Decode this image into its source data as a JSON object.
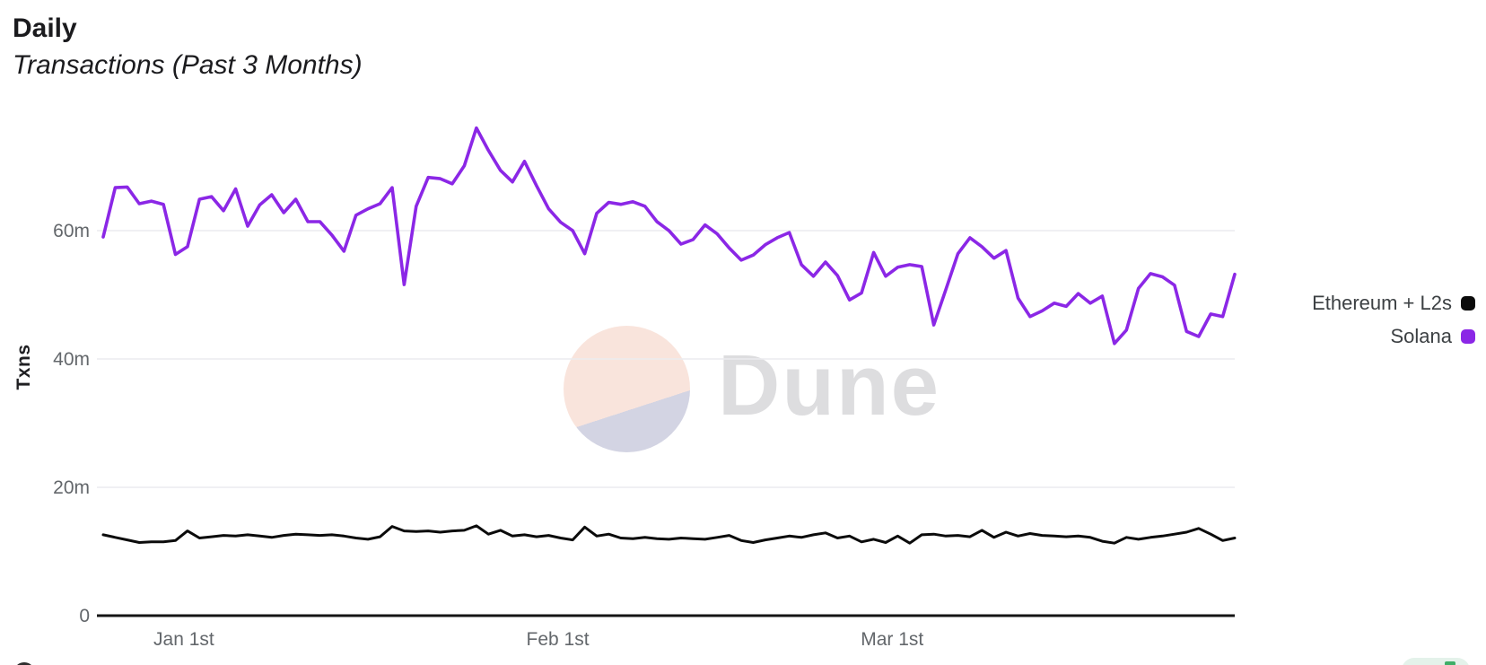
{
  "header": {
    "title": "Daily",
    "subtitle": "Transactions (Past 3 Months)"
  },
  "watermark": {
    "text": "Dune",
    "logo_icon": "dune-gradient-circle-icon"
  },
  "icons": {
    "corner_badge": "sparkle-icon"
  },
  "colors": {
    "ethereum_l2s": "#0b0b0b",
    "solana": "#8b27e6",
    "grid": "#ececef",
    "axis": "#141414",
    "tick_text": "#63676b",
    "watermark_pink": "#f9e4dc",
    "watermark_lavender": "#d3d4e3"
  },
  "legend": {
    "position": "right",
    "items": [
      {
        "label": "Ethereum + L2s",
        "color": "#0b0b0b"
      },
      {
        "label": "Solana",
        "color": "#8b27e6"
      }
    ]
  },
  "chart_data": {
    "type": "line",
    "title": "Daily Transactions (Past 3 Months)",
    "xlabel": "",
    "ylabel": "Txns",
    "unit": "millions of transactions per day",
    "ylim": [
      0,
      80
    ],
    "grid": "horizontal",
    "legend_position": "right",
    "y_ticks": [
      {
        "label": "0",
        "value": 0
      },
      {
        "label": "20m",
        "value": 20
      },
      {
        "label": "40m",
        "value": 40
      },
      {
        "label": "60m",
        "value": 60
      }
    ],
    "x_ticks": [
      {
        "label": "Jan 1st",
        "day_index": 6.7
      },
      {
        "label": "Feb 1st",
        "day_index": 37.76
      },
      {
        "label": "Mar 1st",
        "day_index": 65.54
      }
    ],
    "series": [
      {
        "name": "Ethereum + L2s",
        "color": "#0b0b0b",
        "stroke_width": 3,
        "values": [
          12.6,
          12.2,
          11.8,
          11.4,
          11.5,
          11.5,
          11.7,
          13.2,
          12.1,
          12.3,
          12.5,
          12.4,
          12.6,
          12.4,
          12.2,
          12.5,
          12.7,
          12.6,
          12.5,
          12.6,
          12.4,
          12.1,
          11.9,
          12.3,
          13.9,
          13.2,
          13.1,
          13.2,
          13.0,
          13.2,
          13.3,
          14.0,
          12.7,
          13.3,
          12.4,
          12.6,
          12.3,
          12.5,
          12.1,
          11.8,
          13.8,
          12.4,
          12.7,
          12.1,
          12.0,
          12.2,
          12.0,
          11.9,
          12.1,
          12.0,
          11.9,
          12.2,
          12.5,
          11.7,
          11.4,
          11.8,
          12.1,
          12.4,
          12.2,
          12.6,
          12.9,
          12.1,
          12.4,
          11.5,
          11.9,
          11.4,
          12.4,
          11.3,
          12.6,
          12.7,
          12.4,
          12.5,
          12.3,
          13.3,
          12.2,
          13.0,
          12.4,
          12.8,
          12.5,
          12.4,
          12.3,
          12.4,
          12.2,
          11.6,
          11.3,
          12.2,
          11.9,
          12.2,
          12.4,
          12.7,
          13.0,
          13.6,
          12.7,
          11.7,
          12.1
        ]
      },
      {
        "name": "Solana",
        "color": "#8b27e6",
        "stroke_width": 3.6,
        "values": [
          59.0,
          66.7,
          66.8,
          64.2,
          64.6,
          64.1,
          56.3,
          57.5,
          64.9,
          65.3,
          63.1,
          66.5,
          60.7,
          64.0,
          65.6,
          62.8,
          64.9,
          61.4,
          61.4,
          59.3,
          56.8,
          62.4,
          63.4,
          64.2,
          66.7,
          51.6,
          63.8,
          68.3,
          68.1,
          67.3,
          70.1,
          76.0,
          72.5,
          69.4,
          67.6,
          70.8,
          67.0,
          63.4,
          61.3,
          60.0,
          56.4,
          62.7,
          64.4,
          64.1,
          64.5,
          63.8,
          61.4,
          60.0,
          57.9,
          58.6,
          60.9,
          59.5,
          57.3,
          55.4,
          56.2,
          57.8,
          58.9,
          59.7,
          54.7,
          52.9,
          55.1,
          53.0,
          49.2,
          50.3,
          56.6,
          52.9,
          54.3,
          54.7,
          54.4,
          45.3,
          50.8,
          56.4,
          58.9,
          57.5,
          55.7,
          56.9,
          49.5,
          46.6,
          47.5,
          48.7,
          48.2,
          50.2,
          48.7,
          49.8,
          42.4,
          44.5,
          51.0,
          53.3,
          52.8,
          51.5,
          44.3,
          43.5,
          47.0,
          46.6,
          53.2
        ]
      }
    ]
  }
}
